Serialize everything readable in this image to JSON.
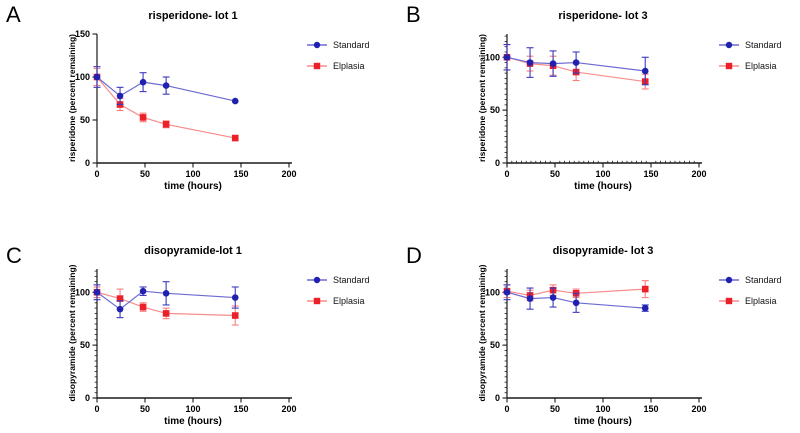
{
  "figure": {
    "background": "#ffffff",
    "legend_position": "right"
  },
  "colors": {
    "axis": "#1a1a1a",
    "text": "#000000",
    "standard_marker": "#2121b1",
    "standard_line": "#6b6bd1",
    "standard_error": "#3a3ac0",
    "elplasia_marker": "#ec2028",
    "elplasia_line": "#f98c8c",
    "elplasia_error": "#f97f7f"
  },
  "chart_data": [
    {
      "panel_label": "A",
      "type": "line",
      "title": "risperidone- lot 1",
      "xlabel": "time (hours)",
      "ylabel": "risperidone (percent remaining)",
      "xlim": [
        0,
        200
      ],
      "xticks": [
        0,
        50,
        100,
        150,
        200
      ],
      "ylim": [
        0,
        150
      ],
      "yticks": [
        0,
        50,
        100,
        150
      ],
      "y_minor_step": null,
      "x_minor_step": null,
      "grid": false,
      "x": [
        0,
        24,
        48,
        72,
        144
      ],
      "series": [
        {
          "name": "Standard",
          "color_key": "standard",
          "marker": "circle",
          "values": [
            100,
            78,
            94,
            90,
            72
          ],
          "errors": [
            12,
            10,
            11,
            10,
            0
          ]
        },
        {
          "name": "Elplasia",
          "color_key": "elplasia",
          "marker": "square",
          "values": [
            100,
            68,
            53,
            45,
            29
          ],
          "errors": [
            10,
            7,
            5,
            4,
            0
          ]
        }
      ]
    },
    {
      "panel_label": "B",
      "type": "line",
      "title": "risperidone- lot 3",
      "xlabel": "time (hours)",
      "ylabel": "risperidone (percent remaining)",
      "xlim": [
        0,
        200
      ],
      "xticks": [
        0,
        50,
        100,
        150,
        200
      ],
      "ylim": [
        0,
        122
      ],
      "yticks": [
        0,
        50,
        100
      ],
      "y_minor_step": 5,
      "x_minor_step": 5,
      "grid": false,
      "x": [
        0,
        24,
        48,
        72,
        144
      ],
      "series": [
        {
          "name": "Standard",
          "color_key": "standard",
          "marker": "circle",
          "values": [
            100,
            95,
            94,
            95,
            87
          ],
          "errors": [
            12,
            14,
            12,
            10,
            13
          ]
        },
        {
          "name": "Elplasia",
          "color_key": "elplasia",
          "marker": "square",
          "values": [
            100,
            94,
            92,
            86,
            77
          ],
          "errors": [
            12,
            7,
            9,
            8,
            7
          ]
        }
      ]
    },
    {
      "panel_label": "C",
      "type": "line",
      "title": "disopyramide-lot 1",
      "xlabel": "time (hours)",
      "ylabel": "disopyramide (percent remaining)",
      "xlim": [
        0,
        200
      ],
      "xticks": [
        0,
        50,
        100,
        150,
        200
      ],
      "ylim": [
        0,
        122
      ],
      "yticks": [
        0,
        50,
        100
      ],
      "y_minor_step": 5,
      "x_minor_step": null,
      "grid": false,
      "x": [
        0,
        24,
        48,
        72,
        144
      ],
      "series": [
        {
          "name": "Standard",
          "color_key": "standard",
          "marker": "circle",
          "values": [
            100,
            84,
            101,
            99,
            95
          ],
          "errors": [
            7,
            8,
            4,
            11,
            10
          ]
        },
        {
          "name": "Elplasia",
          "color_key": "elplasia",
          "marker": "square",
          "values": [
            100,
            94,
            86,
            80,
            78
          ],
          "errors": [
            5,
            9,
            4,
            5,
            9
          ]
        }
      ]
    },
    {
      "panel_label": "D",
      "type": "line",
      "title": "disopyramide- lot 3",
      "xlabel": "time (hours)",
      "ylabel": "disopyramide (percent remaining)",
      "xlim": [
        0,
        200
      ],
      "xticks": [
        0,
        50,
        100,
        150,
        200
      ],
      "ylim": [
        0,
        122
      ],
      "yticks": [
        0,
        50,
        100
      ],
      "y_minor_step": 5,
      "x_minor_step": null,
      "grid": false,
      "x": [
        0,
        24,
        48,
        72,
        144
      ],
      "series": [
        {
          "name": "Standard",
          "color_key": "standard",
          "marker": "circle",
          "values": [
            100,
            94,
            95,
            90,
            85
          ],
          "errors": [
            7,
            10,
            9,
            9,
            3
          ]
        },
        {
          "name": "Elplasia",
          "color_key": "elplasia",
          "marker": "square",
          "values": [
            101,
            97,
            102,
            99,
            103
          ],
          "errors": [
            6,
            5,
            5,
            4,
            8
          ]
        }
      ]
    }
  ]
}
